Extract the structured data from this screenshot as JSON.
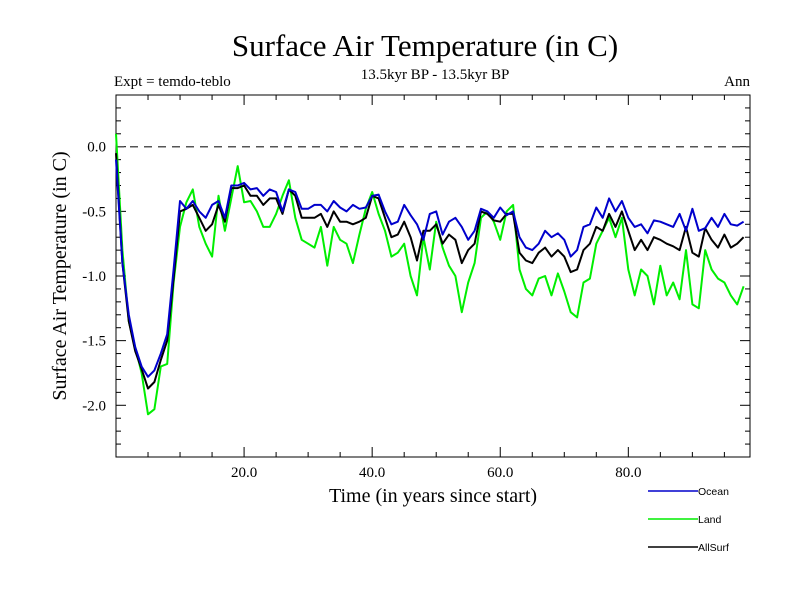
{
  "chart_data": {
    "type": "line",
    "title": "Surface Air Temperature (in C)",
    "subtitle_left": "Expt = temdo-teblo",
    "subtitle_center": "13.5kyr BP - 13.5kyr BP",
    "subtitle_right": "Ann",
    "xlabel": "Time (in years since start)",
    "ylabel": "Surface Air Temperature (in C)",
    "xlim": [
      0,
      99
    ],
    "ylim": [
      -2.4,
      0.4
    ],
    "x_ticks": [
      20,
      40,
      60,
      80
    ],
    "x_tick_labels": [
      "20.0",
      "40.0",
      "60.0",
      "80.0"
    ],
    "y_ticks": [
      0.0,
      -0.5,
      -1.0,
      -1.5,
      -2.0
    ],
    "y_tick_labels": [
      "0.0",
      "-0.5",
      "-1.0",
      "-1.5",
      "-2.0"
    ],
    "reference_line": 0.0,
    "x_start": 0,
    "series": [
      {
        "name": "Ocean",
        "color": "#0000cc",
        "values": [
          -0.1,
          -0.9,
          -1.3,
          -1.55,
          -1.7,
          -1.78,
          -1.73,
          -1.6,
          -1.45,
          -0.95,
          -0.42,
          -0.48,
          -0.42,
          -0.5,
          -0.55,
          -0.45,
          -0.42,
          -0.55,
          -0.3,
          -0.3,
          -0.28,
          -0.33,
          -0.32,
          -0.38,
          -0.33,
          -0.35,
          -0.5,
          -0.33,
          -0.35,
          -0.48,
          -0.48,
          -0.45,
          -0.45,
          -0.5,
          -0.42,
          -0.47,
          -0.5,
          -0.45,
          -0.48,
          -0.47,
          -0.38,
          -0.37,
          -0.5,
          -0.6,
          -0.58,
          -0.45,
          -0.53,
          -0.6,
          -0.72,
          -0.52,
          -0.5,
          -0.68,
          -0.58,
          -0.55,
          -0.62,
          -0.72,
          -0.65,
          -0.48,
          -0.5,
          -0.55,
          -0.47,
          -0.53,
          -0.5,
          -0.7,
          -0.78,
          -0.8,
          -0.75,
          -0.65,
          -0.7,
          -0.67,
          -0.72,
          -0.85,
          -0.8,
          -0.62,
          -0.6,
          -0.47,
          -0.55,
          -0.4,
          -0.5,
          -0.42,
          -0.55,
          -0.62,
          -0.6,
          -0.67,
          -0.57,
          -0.58,
          -0.6,
          -0.62,
          -0.52,
          -0.65,
          -0.48,
          -0.65,
          -0.63,
          -0.55,
          -0.62,
          -0.52,
          -0.6,
          -0.61,
          -0.58
        ]
      },
      {
        "name": "Land",
        "color": "#00ee00",
        "values": [
          0.1,
          -0.8,
          -1.35,
          -1.55,
          -1.75,
          -2.07,
          -2.03,
          -1.7,
          -1.68,
          -1.05,
          -0.62,
          -0.43,
          -0.33,
          -0.62,
          -0.75,
          -0.85,
          -0.38,
          -0.65,
          -0.4,
          -0.15,
          -0.43,
          -0.42,
          -0.5,
          -0.62,
          -0.62,
          -0.52,
          -0.38,
          -0.26,
          -0.55,
          -0.72,
          -0.75,
          -0.78,
          -0.62,
          -0.92,
          -0.62,
          -0.72,
          -0.75,
          -0.9,
          -0.68,
          -0.48,
          -0.35,
          -0.52,
          -0.65,
          -0.85,
          -0.82,
          -0.75,
          -1.0,
          -1.15,
          -0.7,
          -0.95,
          -0.58,
          -0.78,
          -0.92,
          -1.0,
          -1.28,
          -1.05,
          -0.9,
          -0.55,
          -0.5,
          -0.58,
          -0.72,
          -0.5,
          -0.45,
          -0.95,
          -1.1,
          -1.15,
          -1.02,
          -1.0,
          -1.15,
          -0.98,
          -1.12,
          -1.28,
          -1.32,
          -1.05,
          -1.02,
          -0.75,
          -0.65,
          -0.55,
          -0.7,
          -0.55,
          -0.95,
          -1.15,
          -0.95,
          -1.0,
          -1.22,
          -0.92,
          -1.15,
          -1.05,
          -1.18,
          -0.8,
          -1.22,
          -1.25,
          -0.8,
          -0.95,
          -1.02,
          -1.05,
          -1.15,
          -1.22,
          -1.08
        ]
      },
      {
        "name": "AllSurf",
        "color": "#000000",
        "values": [
          -0.05,
          -0.9,
          -1.35,
          -1.58,
          -1.72,
          -1.87,
          -1.82,
          -1.65,
          -1.5,
          -1.02,
          -0.5,
          -0.48,
          -0.45,
          -0.55,
          -0.65,
          -0.6,
          -0.45,
          -0.58,
          -0.32,
          -0.32,
          -0.3,
          -0.38,
          -0.38,
          -0.45,
          -0.4,
          -0.4,
          -0.52,
          -0.33,
          -0.38,
          -0.55,
          -0.55,
          -0.55,
          -0.52,
          -0.62,
          -0.5,
          -0.58,
          -0.58,
          -0.6,
          -0.58,
          -0.55,
          -0.38,
          -0.4,
          -0.55,
          -0.7,
          -0.68,
          -0.58,
          -0.7,
          -0.88,
          -0.65,
          -0.65,
          -0.6,
          -0.75,
          -0.68,
          -0.72,
          -0.9,
          -0.8,
          -0.75,
          -0.5,
          -0.52,
          -0.57,
          -0.58,
          -0.52,
          -0.52,
          -0.82,
          -0.88,
          -0.9,
          -0.82,
          -0.78,
          -0.85,
          -0.8,
          -0.85,
          -0.97,
          -0.95,
          -0.8,
          -0.75,
          -0.62,
          -0.65,
          -0.52,
          -0.62,
          -0.5,
          -0.65,
          -0.8,
          -0.72,
          -0.8,
          -0.7,
          -0.72,
          -0.75,
          -0.77,
          -0.8,
          -0.62,
          -0.82,
          -0.85,
          -0.63,
          -0.72,
          -0.78,
          -0.68,
          -0.78,
          -0.75,
          -0.7
        ]
      }
    ]
  }
}
